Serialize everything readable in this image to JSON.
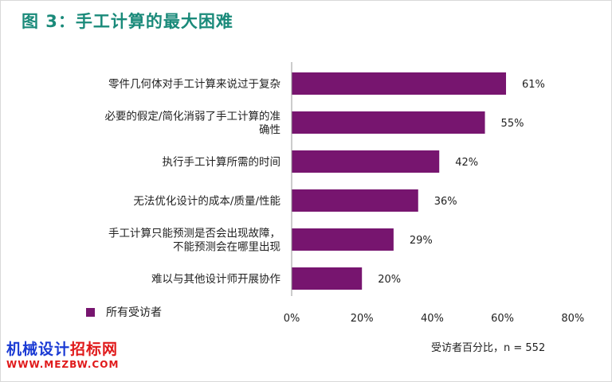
{
  "title": "图 3：手工计算的最大困难",
  "colors": {
    "title": "#1a8a7a",
    "bar": "#77156f",
    "axis": "#999999"
  },
  "legend": {
    "label": "所有受访者",
    "position": "bottom-left"
  },
  "xlabel": "受访者百分比，n = 552",
  "watermark": {
    "line1_blue": "机械设计",
    "line1_red": "招标网",
    "line2": "WWW.MEZBW.COM"
  },
  "chart_data": {
    "type": "bar",
    "orientation": "horizontal",
    "categories": [
      [
        "零件几何体对手工计算来说过于复杂"
      ],
      [
        "必要的假定/简化消弱了手工计算的准",
        "确性"
      ],
      [
        "执行手工计算所需的时间"
      ],
      [
        "无法优化设计的成本/质量/性能"
      ],
      [
        "手工计算只能预测是否会出现故障，",
        "不能预测会在哪里出现"
      ],
      [
        "难以与其他设计师开展协作"
      ]
    ],
    "series": [
      {
        "name": "所有受访者",
        "values": [
          61,
          55,
          42,
          36,
          29,
          20
        ]
      }
    ],
    "value_labels": [
      "61%",
      "55%",
      "42%",
      "36%",
      "29%",
      "20%"
    ],
    "xlim": [
      0,
      80
    ],
    "xticks": [
      "0%",
      "20%",
      "40%",
      "60%",
      "80%"
    ],
    "grid": false
  }
}
